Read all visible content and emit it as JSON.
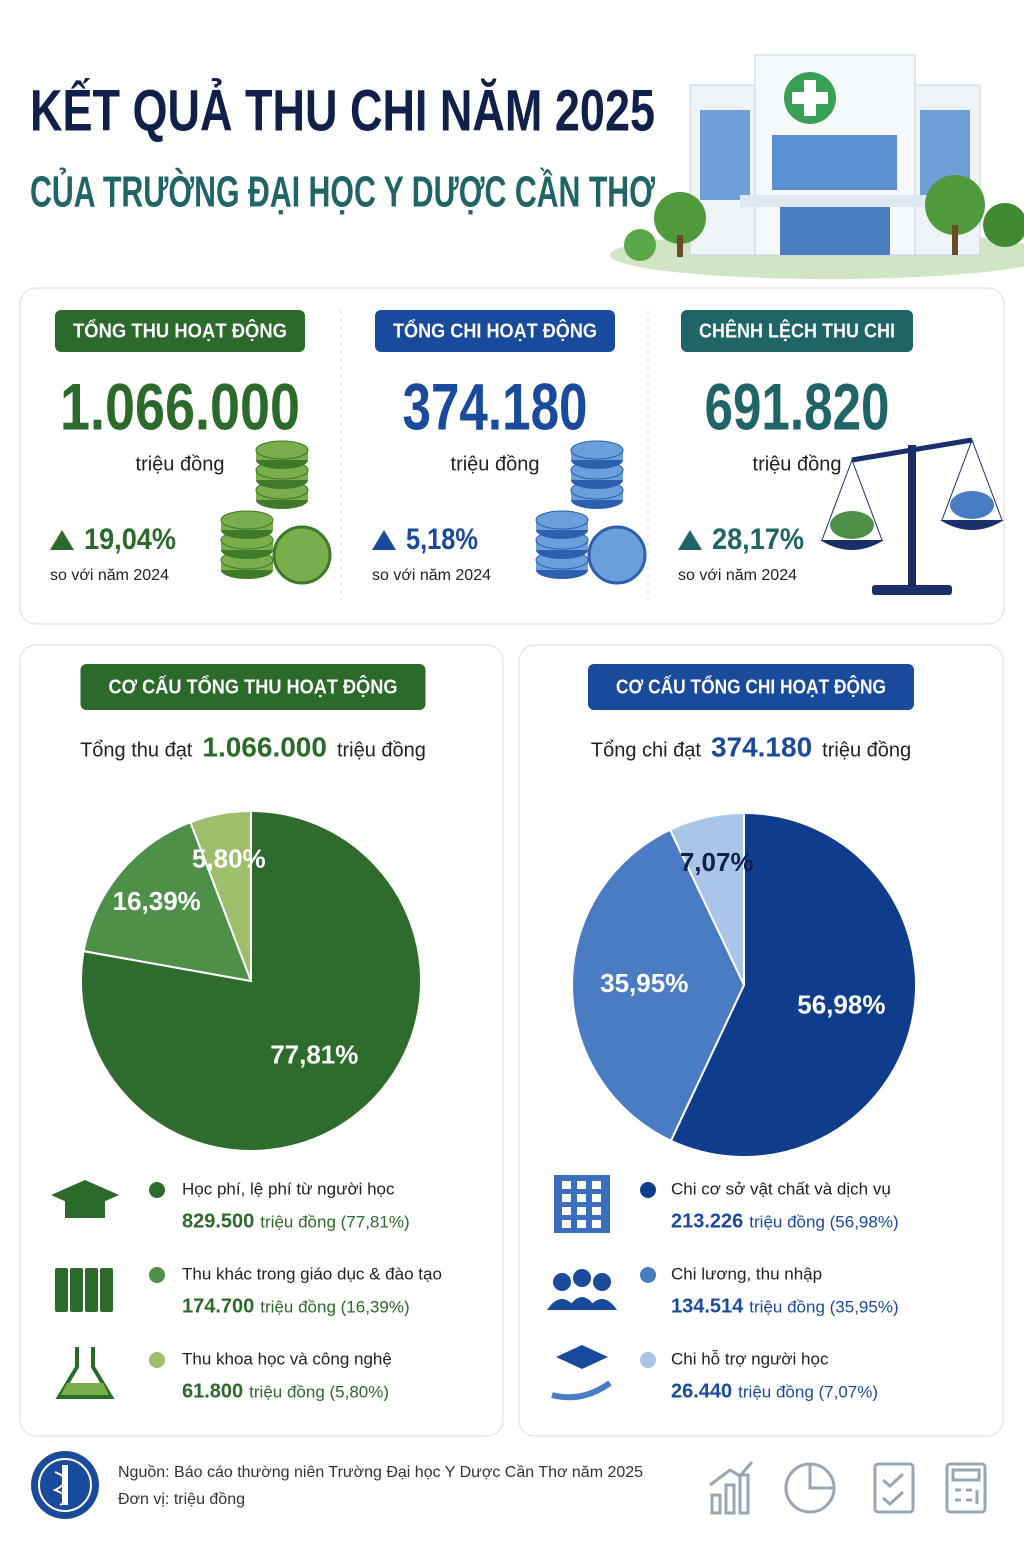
{
  "header": {
    "title": "KẾT QUẢ THU CHI NĂM 2025",
    "subtitle": "CỦA TRƯỜNG ĐẠI HỌC Y DƯỢC CẦN THƠ"
  },
  "kpis": [
    {
      "title": "TỔNG THU HOẠT ĐỘNG",
      "value": "1.066.000",
      "unit": "triệu đồng",
      "change": "19,04%",
      "comparison": "so với năm 2024",
      "color": "#2b6a2a"
    },
    {
      "title": "TỔNG CHI HOẠT ĐỘNG",
      "value": "374.180",
      "unit": "triệu đồng",
      "change": "5,18%",
      "comparison": "so với năm 2024",
      "color": "#1a4a9c"
    },
    {
      "title": "CHÊNH LỆCH THU CHI",
      "value": "691.820",
      "unit": "triệu đồng",
      "change": "28,17%",
      "comparison": "so với năm 2024",
      "color": "#1f6466"
    }
  ],
  "chart_data": [
    {
      "type": "pie",
      "title": "CƠ CẤU TỔNG THU HOẠT ĐỘNG",
      "total_prefix": "Tổng thu đạt",
      "total": "1.066.000",
      "total_unit": "triệu đồng",
      "theme_color": "#2b6a2a",
      "categories": [
        "Học phí, lệ phí từ người học",
        "Thu khác trong giáo dục & đào tạo",
        "Thu khoa học và công nghệ"
      ],
      "values": [
        77.81,
        16.39,
        5.8
      ],
      "value_labels": [
        "77,81%",
        "16,39%",
        "5,80%"
      ],
      "colors": [
        "#2d6c2c",
        "#4f9048",
        "#9dbf6c"
      ],
      "amounts": [
        "829.500",
        "174.700",
        "61.800"
      ],
      "amount_notes": [
        "triệu đồng (77,81%)",
        "triệu đồng (16,39%)",
        "triệu đồng (5,80%)"
      ]
    },
    {
      "type": "pie",
      "title": "CƠ CẤU TỔNG CHI HOẠT ĐỘNG",
      "total_prefix": "Tổng chi đạt",
      "total": "374.180",
      "total_unit": "triệu đồng",
      "theme_color": "#1a4a9c",
      "categories": [
        "Chi cơ sở vật chất và dịch vụ",
        "Chi lương, thu nhập",
        "Chi hỗ trợ người học"
      ],
      "values": [
        56.98,
        35.95,
        7.07
      ],
      "value_labels": [
        "56,98%",
        "35,95%",
        "7,07%"
      ],
      "colors": [
        "#0f3c8c",
        "#4a7cc4",
        "#a9c5e8"
      ],
      "amounts": [
        "213.226",
        "134.514",
        "26.440"
      ],
      "amount_notes": [
        "triệu đồng (56,98%)",
        "triệu đồng (35,95%)",
        "triệu đồng (7,07%)"
      ]
    }
  ],
  "footer": {
    "source": "Nguồn: Báo cáo thường niên Trường Đại học Y Dược Cần Thơ năm 2025",
    "unit": "Đơn vị: triệu đồng"
  }
}
